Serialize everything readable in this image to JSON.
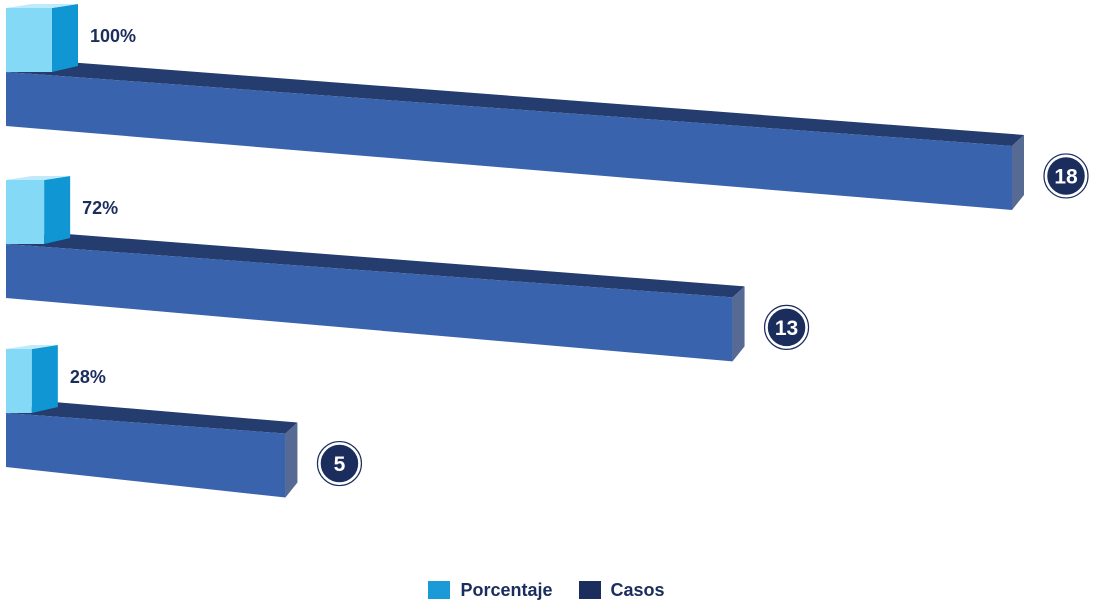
{
  "chart_data": {
    "type": "bar",
    "categories": [
      "",
      "",
      ""
    ],
    "series": [
      {
        "name": "Porcentaje",
        "values": [
          100,
          72,
          28
        ],
        "labels": [
          "100%",
          "72%",
          "28%"
        ],
        "color": "#1a9ad6"
      },
      {
        "name": "Casos",
        "values": [
          18,
          13,
          5
        ],
        "labels": [
          "18",
          "13",
          "5"
        ],
        "color": "#1b2d5c"
      }
    ],
    "title": "",
    "xlabel": "",
    "ylabel": "",
    "xlim": [
      0,
      18
    ],
    "legend_position": "bottom",
    "grid": false,
    "orientation": "horizontal",
    "style": "3d",
    "colors": {
      "casos_front": "#3a63ae",
      "casos_top": "#243d6e",
      "casos_side": "#566a94",
      "pct_front": "#84d9f7",
      "pct_side": "#0f96d3",
      "pct_top": "#bfeafb",
      "label_text": "#1b2d5c",
      "badge_fill": "#1b2d5c",
      "badge_text": "#ffffff"
    }
  },
  "legend": [
    {
      "label": "Porcentaje",
      "color": "#1a9ad6"
    },
    {
      "label": "Casos",
      "color": "#1b2d5c"
    }
  ]
}
